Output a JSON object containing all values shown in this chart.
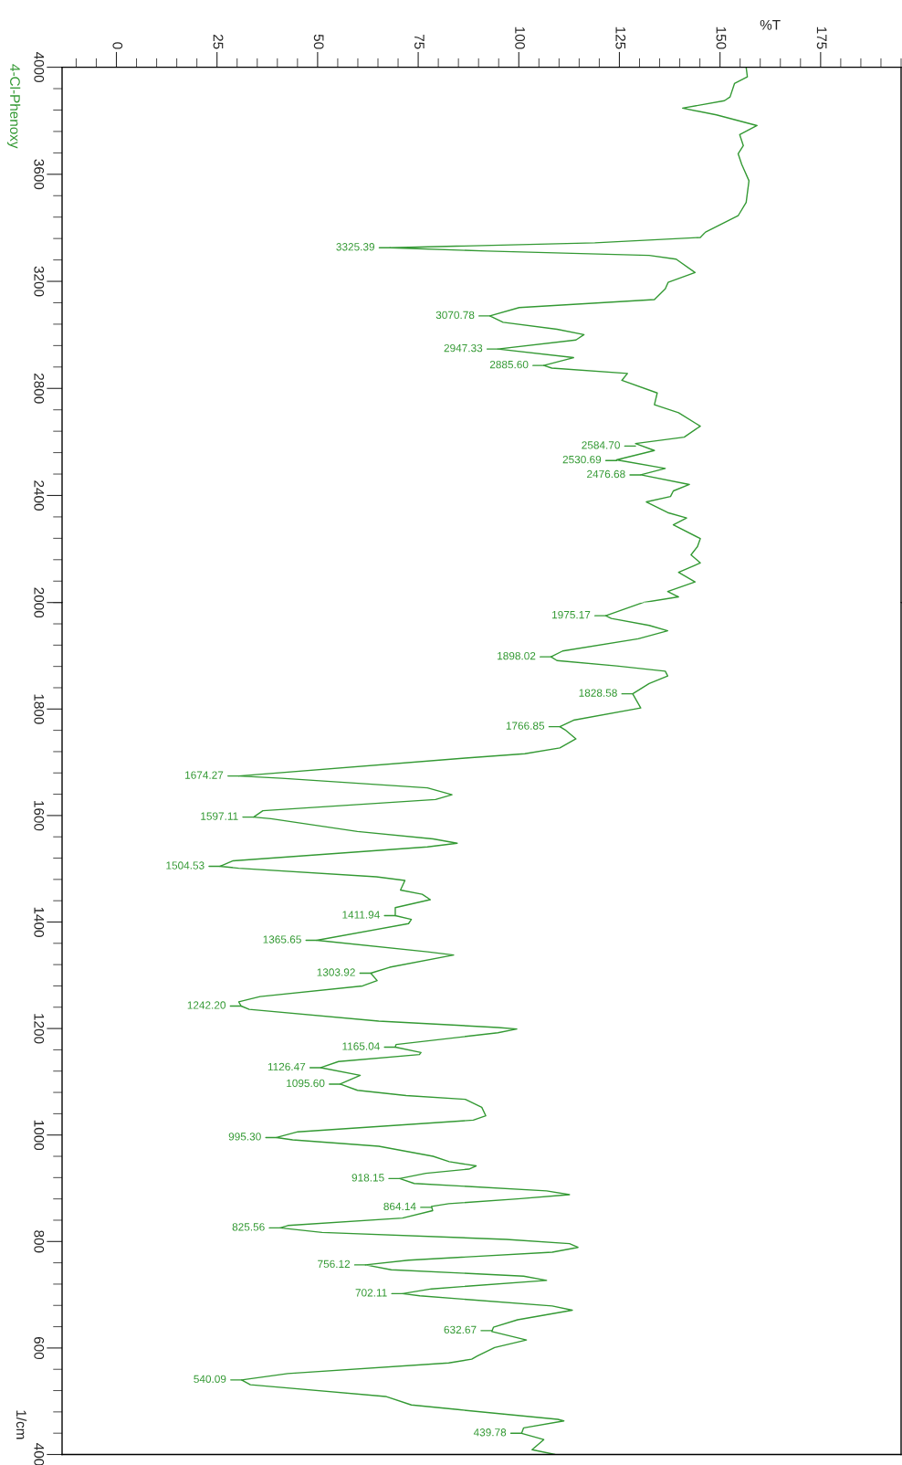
{
  "chart_data": [
    {
      "type": "line",
      "xlabel": "%T",
      "xlim": [
        -13.5,
        195
      ],
      "xticks": [
        0,
        25,
        50,
        75,
        100,
        125,
        150,
        175
      ],
      "ylim": [
        2000,
        4000
      ],
      "yticks": [
        4000,
        3600,
        3200,
        2800,
        2400
      ],
      "series": [
        {
          "name": "4-Cl-Phenoxy",
          "color": "#339933",
          "x": [
            156.5,
            156.8,
            153.6,
            152.5,
            151.1,
            140.7,
            149.1,
            159.2,
            154.9,
            155.8,
            154.5,
            155.4,
            157.2,
            156.5,
            154.5,
            146.4,
            145.1,
            118.9,
            68.0,
            92.1,
            132.4,
            139.1,
            143.8,
            137.1,
            136.4,
            133.7,
            100.1,
            92.8,
            96.1,
            109.5,
            116.2,
            114.2,
            94.8,
            113.6,
            106.2,
            108.2,
            127.0,
            125.6,
            134.4,
            133.7,
            139.7,
            145.1,
            141.1,
            129.0,
            133.7,
            124.3,
            136.4,
            130.3,
            142.4,
            138.4,
            137.7,
            131.7,
            137.0,
            141.7,
            138.4,
            145.1,
            144.4,
            142.8,
            145.1,
            139.7,
            143.8,
            137.0,
            139.7,
            130.9
          ],
          "values": [
            4000,
            3964,
            3939,
            3889,
            3875,
            3847,
            3822,
            3782,
            3748,
            3707,
            3677,
            3637,
            3576,
            3495,
            3445,
            3384,
            3364,
            3344,
            3325.39,
            3313,
            3297,
            3283,
            3233,
            3196,
            3172,
            3132,
            3102,
            3070.78,
            3047,
            3021,
            3001,
            2981,
            2947.33,
            2915,
            2885.6,
            2876,
            2856,
            2830,
            2783,
            2739,
            2709,
            2659,
            2618,
            2594,
            2568,
            2533,
            2501,
            2477,
            2441,
            2417,
            2396,
            2376,
            2336,
            2316,
            2290,
            2239,
            2209,
            2178,
            2148,
            2113,
            2077,
            2041,
            2021,
            2000
          ]
        }
      ],
      "annotations": [
        {
          "text": "3325.39",
          "x": 68.0,
          "y": 3325.39
        },
        {
          "text": "3070.78",
          "x": 92.8,
          "y": 3070.78
        },
        {
          "text": "2947.33",
          "x": 94.8,
          "y": 2947.33
        },
        {
          "text": "2885.60",
          "x": 106.2,
          "y": 2885.6
        },
        {
          "text": "2584.70",
          "x": 129.0,
          "y": 2584.7
        },
        {
          "text": "2530.69",
          "x": 124.3,
          "y": 2530.69
        },
        {
          "text": "2476.68",
          "x": 130.3,
          "y": 2476.68
        }
      ]
    },
    {
      "type": "line",
      "xlim": [
        -13.5,
        195
      ],
      "ylim": [
        400,
        2000
      ],
      "yticks": [
        2000,
        1800,
        1600,
        1400,
        1200,
        1000,
        800,
        600,
        400
      ],
      "ylabel": "1/cm",
      "tick_labels": "y",
      "series": [
        {
          "color": "#339933",
          "x": [
            130.9,
            121.6,
            123.0,
            132.4,
            137.0,
            129.7,
            110.9,
            108.0,
            109.5,
            124.3,
            136.4,
            137.0,
            132.4,
            128.3,
            130.3,
            113.6,
            110.2,
            111.5,
            114.2,
            110.2,
            101.5,
            86.7,
            30.4,
            41.1,
            77.3,
            83.4,
            79.3,
            36.4,
            34.1,
            38.4,
            59.9,
            78.7,
            84.7,
            77.3,
            29.0,
            25.7,
            30.4,
            64.6,
            71.7,
            70.6,
            76.0,
            78.0,
            69.3,
            69.3,
            73.3,
            72.6,
            49.8,
            77.3,
            83.8,
            67.9,
            63.2,
            64.8,
            61.2,
            35.7,
            30.4,
            31.0,
            33.0,
            65.2,
            94.8,
            99.5,
            94.8,
            69.5,
            69.3,
            75.7,
            75.3,
            55.2,
            50.8,
            60.6,
            55.6,
            59.9,
            72.0,
            86.7,
            90.8,
            91.8,
            88.7,
            45.1,
            39.8,
            43.8,
            65.2,
            78.7,
            82.7,
            89.4,
            87.6,
            76.9,
            70.4,
            74.0,
            106.9,
            112.6,
            99.7,
            82.6,
            78.3,
            78.6,
            71.1,
            42.6,
            40.7,
            51.1,
            96.9,
            112.6,
            114.7,
            108.3,
            72.6,
            61.9,
            68.3,
            101.2,
            106.9,
            78.3,
            71.1,
            75.4,
            108.3,
            113.3,
            99.7,
            93.7,
            93.3,
            101.9,
            94.0,
            89.7,
            88.3,
            82.6,
            42.6,
            31.1,
            33.3,
            66.9,
            73.3,
            85.4,
            109.7,
            111.2,
            101.2,
            100.7,
            106.2,
            103.3,
            109.0
          ],
          "values": [
            2000,
            1975.17,
            1970,
            1957,
            1947,
            1932,
            1909,
            1898.02,
            1891,
            1881,
            1871,
            1862,
            1848,
            1828.58,
            1802,
            1779,
            1766.85,
            1761,
            1744,
            1727,
            1716,
            1708,
            1674.27,
            1670,
            1652,
            1639,
            1630,
            1609,
            1597.11,
            1594,
            1570,
            1556,
            1548,
            1541,
            1515,
            1504.53,
            1501,
            1485,
            1478,
            1460,
            1452,
            1442,
            1427,
            1411.94,
            1405,
            1397,
            1365.65,
            1344,
            1338,
            1315,
            1303.92,
            1290,
            1280,
            1260,
            1250,
            1242.2,
            1236,
            1214,
            1202,
            1199,
            1192,
            1170,
            1165.04,
            1155,
            1151,
            1138,
            1126.47,
            1112,
            1095.6,
            1084,
            1074,
            1067,
            1052,
            1036,
            1028,
            1006,
            995.3,
            991,
            979,
            960,
            950,
            942,
            936,
            928,
            918.15,
            909,
            895,
            888,
            880,
            871,
            866,
            858,
            844,
            830,
            825.56,
            817,
            804,
            796,
            789,
            780,
            765,
            756.12,
            747,
            735,
            727,
            711,
            702.11,
            698,
            679,
            671,
            653,
            639,
            631,
            615,
            601,
            585,
            579,
            572,
            552,
            540.09,
            531,
            509,
            493,
            484,
            466,
            463,
            450,
            439.78,
            428,
            409,
            400
          ]
        }
      ],
      "annotations": [
        {
          "text": "1975.17",
          "x": 121.6,
          "y": 1975.17
        },
        {
          "text": "1898.02",
          "x": 108.0,
          "y": 1898.02
        },
        {
          "text": "1828.58",
          "x": 128.3,
          "y": 1828.58
        },
        {
          "text": "1766.85",
          "x": 110.2,
          "y": 1766.85
        },
        {
          "text": "1674.27",
          "x": 30.4,
          "y": 1674.27
        },
        {
          "text": "1597.11",
          "x": 34.1,
          "y": 1597.11
        },
        {
          "text": "1504.53",
          "x": 25.7,
          "y": 1504.53
        },
        {
          "text": "1411.94",
          "x": 69.3,
          "y": 1411.94
        },
        {
          "text": "1365.65",
          "x": 49.8,
          "y": 1365.65
        },
        {
          "text": "1303.92",
          "x": 63.2,
          "y": 1303.92
        },
        {
          "text": "1242.20",
          "x": 31.0,
          "y": 1242.2
        },
        {
          "text": "1165.04",
          "x": 69.3,
          "y": 1165.04
        },
        {
          "text": "1126.47",
          "x": 50.8,
          "y": 1126.47
        },
        {
          "text": "1095.60",
          "x": 55.6,
          "y": 1095.6
        },
        {
          "text": "995.30",
          "x": 39.8,
          "y": 995.3
        },
        {
          "text": "918.15",
          "x": 70.4,
          "y": 918.15
        },
        {
          "text": "864.14",
          "x": 78.3,
          "y": 864.14
        },
        {
          "text": "825.56",
          "x": 40.7,
          "y": 825.56
        },
        {
          "text": "756.12",
          "x": 61.9,
          "y": 756.12
        },
        {
          "text": "702.11",
          "x": 71.1,
          "y": 702.11
        },
        {
          "text": "632.67",
          "x": 93.3,
          "y": 632.67
        },
        {
          "text": "540.09",
          "x": 31.1,
          "y": 540.09
        },
        {
          "text": "439.78",
          "x": 100.7,
          "y": 439.78
        }
      ]
    }
  ]
}
